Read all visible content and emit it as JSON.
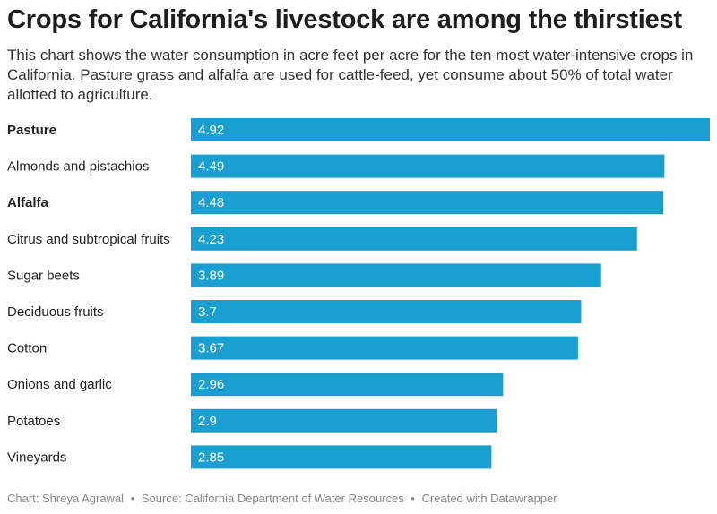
{
  "title": "Crops for California's livestock are among the thirstiest",
  "subtitle": "This chart shows the water consumption in acre feet per acre for the ten most water-intensive crops in California. Pasture grass and alfalfa are used for cattle-feed, yet consume about 50% of total water allotted to agriculture.",
  "footer": {
    "chart_credit": "Chart: Shreya Agrawal",
    "source": "Source: California Department of Water Resources",
    "created_with": "Created with Datawrapper",
    "separator": "•"
  },
  "colors": {
    "bar": "#1aa0d0",
    "label_text": "#222222",
    "value_text": "#ffffff"
  },
  "chart_data": {
    "type": "bar",
    "orientation": "horizontal",
    "title": "Crops for California's livestock are among the thirstiest",
    "xlabel": "",
    "ylabel": "",
    "unit": "acre feet per acre",
    "xlim": [
      0,
      4.92
    ],
    "categories": [
      "Pasture",
      "Almonds and pistachios",
      "Alfalfa",
      "Citrus and subtropical fruits",
      "Sugar beets",
      "Deciduous fruits",
      "Cotton",
      "Onions and garlic",
      "Potatoes",
      "Vineyards"
    ],
    "values": [
      4.92,
      4.49,
      4.48,
      4.23,
      3.89,
      3.7,
      3.67,
      2.96,
      2.9,
      2.85
    ],
    "value_labels": [
      "4.92",
      "4.49",
      "4.48",
      "4.23",
      "3.89",
      "3.7",
      "3.67",
      "2.96",
      "2.9",
      "2.85"
    ],
    "highlighted": [
      "Pasture",
      "Alfalfa"
    ]
  }
}
